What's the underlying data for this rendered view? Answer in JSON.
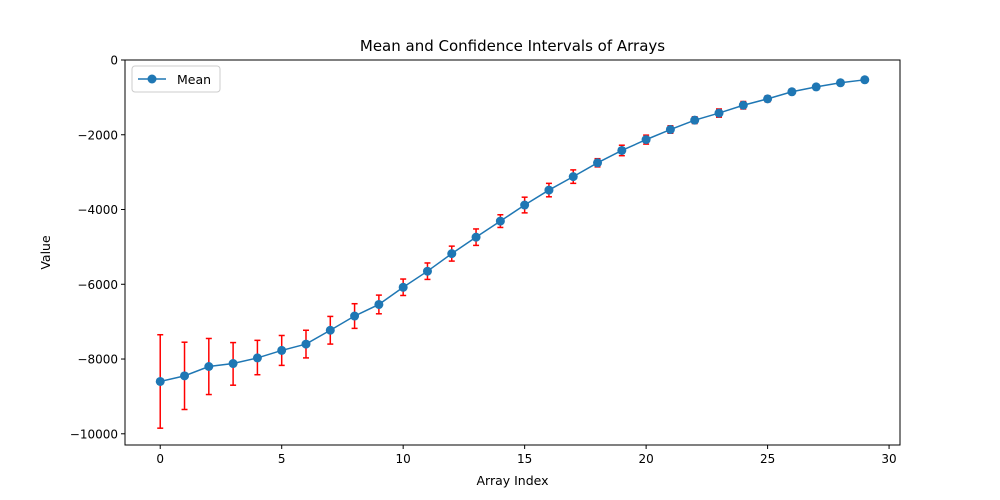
{
  "chart_data": {
    "type": "line",
    "title": "Mean and Confidence Intervals of Arrays",
    "xlabel": "Array Index",
    "ylabel": "Value",
    "xlim": [
      -1.45,
      30.45
    ],
    "ylim": [
      -10300,
      0
    ],
    "xticks": [
      0,
      5,
      10,
      15,
      20,
      25,
      30
    ],
    "yticks": [
      0,
      -2000,
      -4000,
      -6000,
      -8000,
      -10000
    ],
    "xtick_labels": [
      "0",
      "5",
      "10",
      "15",
      "20",
      "25",
      "30"
    ],
    "ytick_labels": [
      "0",
      "−2000",
      "−4000",
      "−6000",
      "−8000",
      "−10000"
    ],
    "legend": {
      "position": "top-left",
      "entries": [
        "Mean"
      ]
    },
    "series": [
      {
        "name": "Mean",
        "color": "#1f77b4",
        "errorbar_color": "#ff0000",
        "x": [
          0,
          1,
          2,
          3,
          4,
          5,
          6,
          7,
          8,
          9,
          10,
          11,
          12,
          13,
          14,
          15,
          16,
          17,
          18,
          19,
          20,
          21,
          22,
          23,
          24,
          25,
          26,
          27,
          28,
          29
        ],
        "values": [
          -8600,
          -8450,
          -8200,
          -8120,
          -7970,
          -7770,
          -7600,
          -7230,
          -6850,
          -6540,
          -6080,
          -5650,
          -5180,
          -4740,
          -4310,
          -3880,
          -3480,
          -3120,
          -2750,
          -2420,
          -2130,
          -1860,
          -1610,
          -1420,
          -1210,
          -1040,
          -850,
          -720,
          -610,
          -530
        ],
        "ci_low": [
          -9850,
          -9350,
          -8950,
          -8700,
          -8420,
          -8170,
          -7970,
          -7600,
          -7180,
          -6790,
          -6300,
          -5870,
          -5380,
          -4960,
          -4480,
          -4090,
          -3660,
          -3300,
          -2860,
          -2560,
          -2250,
          -1960,
          -1700,
          -1530,
          -1310,
          -1120,
          -920,
          -780,
          -660,
          -580
        ],
        "ci_high": [
          -7350,
          -7550,
          -7450,
          -7560,
          -7500,
          -7370,
          -7230,
          -6860,
          -6520,
          -6290,
          -5860,
          -5430,
          -4980,
          -4520,
          -4140,
          -3670,
          -3300,
          -2940,
          -2640,
          -2280,
          -2010,
          -1760,
          -1520,
          -1310,
          -1110,
          -960,
          -780,
          -660,
          -560,
          -480
        ]
      }
    ]
  }
}
